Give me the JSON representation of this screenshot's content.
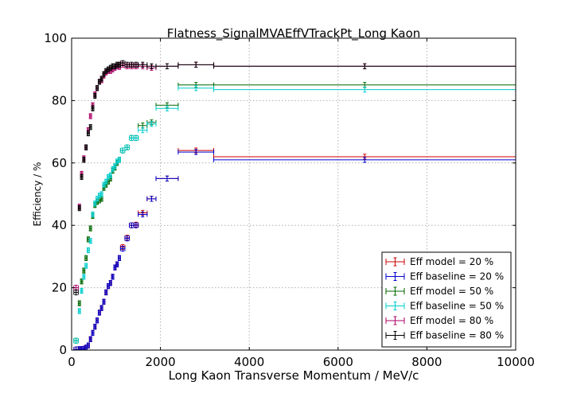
{
  "chart_data": {
    "type": "scatter",
    "title": "Flatness_SignalMVAEffVTrackPt_Long Kaon",
    "xlabel": "Long Kaon Transverse Momentum / MeV/c",
    "ylabel": "Efficiency / %",
    "xlim": [
      0,
      10000
    ],
    "ylim": [
      0,
      100
    ],
    "xticks": [
      "0",
      "2000",
      "4000",
      "6000",
      "8000",
      "10000"
    ],
    "yticks": [
      "0",
      "20",
      "40",
      "60",
      "80",
      "100"
    ],
    "grid": true,
    "legend_position": "bottom-right",
    "x_bins": [
      [
        50,
        150
      ],
      [
        150,
        200
      ],
      [
        200,
        250
      ],
      [
        250,
        300
      ],
      [
        300,
        350
      ],
      [
        350,
        400
      ],
      [
        400,
        450
      ],
      [
        450,
        500
      ],
      [
        500,
        550
      ],
      [
        550,
        600
      ],
      [
        600,
        650
      ],
      [
        650,
        700
      ],
      [
        700,
        750
      ],
      [
        750,
        800
      ],
      [
        800,
        850
      ],
      [
        850,
        900
      ],
      [
        900,
        950
      ],
      [
        950,
        1000
      ],
      [
        1000,
        1050
      ],
      [
        1050,
        1100
      ],
      [
        1100,
        1200
      ],
      [
        1200,
        1300
      ],
      [
        1300,
        1400
      ],
      [
        1400,
        1500
      ],
      [
        1500,
        1700
      ],
      [
        1700,
        1900
      ],
      [
        1900,
        2400
      ],
      [
        2400,
        3200
      ],
      [
        3200,
        10000
      ]
    ],
    "series": [
      {
        "name": "Eff model = 20 %",
        "color": "#cc0000",
        "values": [
          0.2,
          0.3,
          0.3,
          0.4,
          0.8,
          1.5,
          3.5,
          5.5,
          7.5,
          9.5,
          12.0,
          13.5,
          15.5,
          18.5,
          20.5,
          21.5,
          23.5,
          26.5,
          27.5,
          29.5,
          33.0,
          36.0,
          40.0,
          40.2,
          44.0,
          48.5,
          55.0,
          64.0,
          62.0
        ]
      },
      {
        "name": "Eff baseline = 20 %",
        "color": "#0000cc",
        "values": [
          0.2,
          0.3,
          0.3,
          0.4,
          0.8,
          1.5,
          3.5,
          5.5,
          7.5,
          9.5,
          12.0,
          13.5,
          15.5,
          18.5,
          20.5,
          21.5,
          23.5,
          26.5,
          27.5,
          29.5,
          32.5,
          35.8,
          40.0,
          40.0,
          43.5,
          48.5,
          55.0,
          63.5,
          61.0
        ]
      },
      {
        "name": "Eff model = 50 %",
        "color": "#006600",
        "values": [
          3.0,
          15.0,
          22.0,
          25.5,
          29.5,
          35.5,
          39.0,
          43.0,
          46.5,
          47.5,
          48.0,
          48.5,
          52.0,
          53.0,
          54.0,
          55.0,
          57.5,
          58.5,
          60.0,
          61.0,
          64.0,
          65.0,
          68.0,
          68.0,
          72.0,
          73.0,
          78.5,
          85.0,
          85.0
        ]
      },
      {
        "name": "Eff baseline = 50 %",
        "color": "#00cccc",
        "values": [
          3.0,
          12.5,
          19.0,
          23.5,
          27.0,
          32.0,
          35.0,
          43.5,
          47.0,
          48.5,
          49.5,
          50.0,
          53.0,
          54.0,
          55.5,
          56.0,
          58.0,
          59.0,
          60.5,
          61.0,
          64.0,
          65.0,
          68.0,
          68.0,
          70.5,
          72.5,
          77.5,
          84.0,
          83.5
        ]
      },
      {
        "name": "Eff model = 80 %",
        "color": "#aa0066",
        "values": [
          20.0,
          46.0,
          56.5,
          61.5,
          65.0,
          70.5,
          75.0,
          78.5,
          82.0,
          84.0,
          86.0,
          86.5,
          88.0,
          89.0,
          89.5,
          89.5,
          90.0,
          90.5,
          91.0,
          90.8,
          91.5,
          91.0,
          91.0,
          91.0,
          91.0,
          90.5,
          91.0,
          91.5,
          91.0
        ]
      },
      {
        "name": "Eff baseline = 80 %",
        "color": "#000000",
        "values": [
          18.5,
          45.5,
          55.5,
          61.0,
          65.0,
          69.5,
          71.5,
          77.5,
          81.5,
          84.0,
          86.0,
          87.0,
          88.5,
          89.5,
          90.0,
          90.5,
          91.0,
          91.0,
          91.5,
          91.5,
          92.0,
          91.5,
          91.5,
          91.5,
          91.5,
          91.0,
          91.0,
          91.5,
          91.0
        ]
      }
    ]
  }
}
